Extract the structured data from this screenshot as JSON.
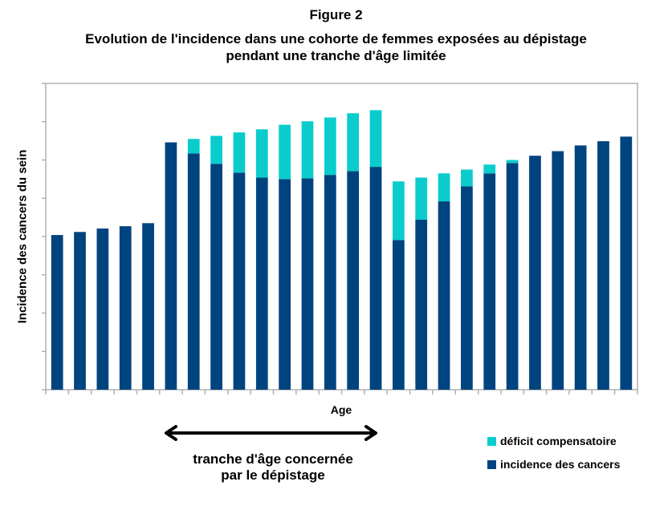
{
  "figure_label": "Figure 2",
  "title_line1": "Evolution de l'incidence dans une cohorte de femmes exposées au dépistage",
  "title_line2": "pendant une tranche d'âge limitée",
  "annotation": {
    "arrow": "double-headed arrow",
    "line1": "tranche d'âge concernée",
    "line2": "par le dépistage",
    "spans_bars": [
      6,
      15
    ]
  },
  "colors": {
    "incidence": "#00447f",
    "deficit": "#0acccc",
    "axis": "#b0b0b0"
  },
  "chart_data": {
    "type": "bar",
    "stacked": true,
    "title": "Evolution de l'incidence dans une cohorte de femmes exposées au dépistage pendant une tranche d'âge limitée",
    "xlabel": "Age",
    "ylabel": "Incidence des cancers du sein",
    "ylim": [
      0,
      8
    ],
    "y_tick_labels_shown": false,
    "grid": false,
    "legend_position": "bottom-right",
    "categories_count": 26,
    "series": [
      {
        "name": "incidence des cancers",
        "values": [
          4.04,
          4.12,
          4.21,
          4.27,
          4.35,
          6.46,
          6.17,
          5.9,
          5.67,
          5.54,
          5.5,
          5.52,
          5.61,
          5.71,
          5.82,
          3.91,
          4.44,
          4.92,
          5.31,
          5.65,
          5.92,
          6.11,
          6.23,
          6.38,
          6.49,
          6.61
        ]
      },
      {
        "name": "déficit compensatoire",
        "values": [
          0,
          0,
          0,
          0,
          0,
          0,
          0.38,
          0.73,
          1.05,
          1.26,
          1.42,
          1.49,
          1.5,
          1.51,
          1.48,
          1.53,
          1.1,
          0.73,
          0.44,
          0.23,
          0.08,
          0,
          0,
          0,
          0,
          0
        ]
      }
    ],
    "legend": [
      "déficit compensatoire",
      "incidence des cancers"
    ]
  }
}
